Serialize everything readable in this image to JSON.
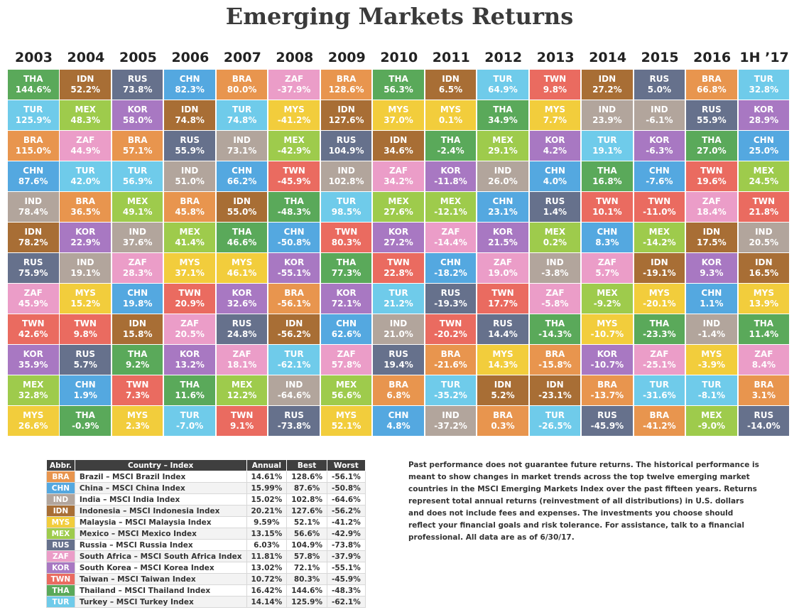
{
  "chart_data": {
    "type": "table",
    "title": "Emerging Markets Returns",
    "years": [
      "2003",
      "2004",
      "2005",
      "2006",
      "2007",
      "2008",
      "2009",
      "2010",
      "2011",
      "2012",
      "2013",
      "2014",
      "2015",
      "2016",
      "1H ’17"
    ],
    "colors": {
      "BRA": "#e8954e",
      "CHN": "#54a8e0",
      "IND": "#b2a59c",
      "IDN": "#a86e35",
      "MYS": "#f2cd3c",
      "MEX": "#9ecb4c",
      "RUS": "#66718c",
      "ZAF": "#eb9dc8",
      "KOR": "#a878c2",
      "TWN": "#ea6b60",
      "THA": "#5aa95a",
      "TUR": "#6fcbea"
    },
    "columns": [
      [
        [
          "THA",
          "144.6%"
        ],
        [
          "TUR",
          "125.9%"
        ],
        [
          "BRA",
          "115.0%"
        ],
        [
          "CHN",
          "87.6%"
        ],
        [
          "IND",
          "78.4%"
        ],
        [
          "IDN",
          "78.2%"
        ],
        [
          "RUS",
          "75.9%"
        ],
        [
          "ZAF",
          "45.9%"
        ],
        [
          "TWN",
          "42.6%"
        ],
        [
          "KOR",
          "35.9%"
        ],
        [
          "MEX",
          "32.8%"
        ],
        [
          "MYS",
          "26.6%"
        ]
      ],
      [
        [
          "IDN",
          "52.2%"
        ],
        [
          "MEX",
          "48.3%"
        ],
        [
          "ZAF",
          "44.9%"
        ],
        [
          "TUR",
          "42.0%"
        ],
        [
          "BRA",
          "36.5%"
        ],
        [
          "KOR",
          "22.9%"
        ],
        [
          "IND",
          "19.1%"
        ],
        [
          "MYS",
          "15.2%"
        ],
        [
          "TWN",
          "9.8%"
        ],
        [
          "RUS",
          "5.7%"
        ],
        [
          "CHN",
          "1.9%"
        ],
        [
          "THA",
          "-0.9%"
        ]
      ],
      [
        [
          "RUS",
          "73.8%"
        ],
        [
          "KOR",
          "58.0%"
        ],
        [
          "BRA",
          "57.1%"
        ],
        [
          "TUR",
          "56.9%"
        ],
        [
          "MEX",
          "49.1%"
        ],
        [
          "IND",
          "37.6%"
        ],
        [
          "ZAF",
          "28.3%"
        ],
        [
          "CHN",
          "19.8%"
        ],
        [
          "IDN",
          "15.8%"
        ],
        [
          "THA",
          "9.2%"
        ],
        [
          "TWN",
          "7.3%"
        ],
        [
          "MYS",
          "2.3%"
        ]
      ],
      [
        [
          "CHN",
          "82.3%"
        ],
        [
          "IDN",
          "74.8%"
        ],
        [
          "RUS",
          "55.9%"
        ],
        [
          "IND",
          "51.0%"
        ],
        [
          "BRA",
          "45.8%"
        ],
        [
          "MEX",
          "41.4%"
        ],
        [
          "MYS",
          "37.1%"
        ],
        [
          "TWN",
          "20.9%"
        ],
        [
          "ZAF",
          "20.5%"
        ],
        [
          "KOR",
          "13.2%"
        ],
        [
          "THA",
          "11.6%"
        ],
        [
          "TUR",
          "-7.0%"
        ]
      ],
      [
        [
          "BRA",
          "80.0%"
        ],
        [
          "TUR",
          "74.8%"
        ],
        [
          "IND",
          "73.1%"
        ],
        [
          "CHN",
          "66.2%"
        ],
        [
          "IDN",
          "55.0%"
        ],
        [
          "THA",
          "46.6%"
        ],
        [
          "MYS",
          "46.1%"
        ],
        [
          "KOR",
          "32.6%"
        ],
        [
          "RUS",
          "24.8%"
        ],
        [
          "ZAF",
          "18.1%"
        ],
        [
          "MEX",
          "12.2%"
        ],
        [
          "TWN",
          "9.1%"
        ]
      ],
      [
        [
          "ZAF",
          "-37.9%"
        ],
        [
          "MYS",
          "-41.2%"
        ],
        [
          "MEX",
          "-42.9%"
        ],
        [
          "TWN",
          "-45.9%"
        ],
        [
          "THA",
          "-48.3%"
        ],
        [
          "CHN",
          "-50.8%"
        ],
        [
          "KOR",
          "-55.1%"
        ],
        [
          "BRA",
          "-56.1%"
        ],
        [
          "IDN",
          "-56.2%"
        ],
        [
          "TUR",
          "-62.1%"
        ],
        [
          "IND",
          "-64.6%"
        ],
        [
          "RUS",
          "-73.8%"
        ]
      ],
      [
        [
          "BRA",
          "128.6%"
        ],
        [
          "IDN",
          "127.6%"
        ],
        [
          "RUS",
          "104.9%"
        ],
        [
          "IND",
          "102.8%"
        ],
        [
          "TUR",
          "98.5%"
        ],
        [
          "TWN",
          "80.3%"
        ],
        [
          "THA",
          "77.3%"
        ],
        [
          "KOR",
          "72.1%"
        ],
        [
          "CHN",
          "62.6%"
        ],
        [
          "ZAF",
          "57.8%"
        ],
        [
          "MEX",
          "56.6%"
        ],
        [
          "MYS",
          "52.1%"
        ]
      ],
      [
        [
          "THA",
          "56.3%"
        ],
        [
          "MYS",
          "37.0%"
        ],
        [
          "IDN",
          "34.6%"
        ],
        [
          "ZAF",
          "34.2%"
        ],
        [
          "MEX",
          "27.6%"
        ],
        [
          "KOR",
          "27.2%"
        ],
        [
          "TWN",
          "22.8%"
        ],
        [
          "TUR",
          "21.2%"
        ],
        [
          "IND",
          "21.0%"
        ],
        [
          "RUS",
          "19.4%"
        ],
        [
          "BRA",
          "6.8%"
        ],
        [
          "CHN",
          "4.8%"
        ]
      ],
      [
        [
          "IDN",
          "6.5%"
        ],
        [
          "MYS",
          "0.1%"
        ],
        [
          "THA",
          "-2.4%"
        ],
        [
          "KOR",
          "-11.8%"
        ],
        [
          "MEX",
          "-12.1%"
        ],
        [
          "ZAF",
          "-14.4%"
        ],
        [
          "CHN",
          "-18.2%"
        ],
        [
          "RUS",
          "-19.3%"
        ],
        [
          "TWN",
          "-20.2%"
        ],
        [
          "BRA",
          "-21.6%"
        ],
        [
          "TUR",
          "-35.2%"
        ],
        [
          "IND",
          "-37.2%"
        ]
      ],
      [
        [
          "TUR",
          "64.9%"
        ],
        [
          "THA",
          "34.9%"
        ],
        [
          "MEX",
          "29.1%"
        ],
        [
          "IND",
          "26.0%"
        ],
        [
          "CHN",
          "23.1%"
        ],
        [
          "KOR",
          "21.5%"
        ],
        [
          "ZAF",
          "19.0%"
        ],
        [
          "TWN",
          "17.7%"
        ],
        [
          "RUS",
          "14.4%"
        ],
        [
          "MYS",
          "14.3%"
        ],
        [
          "IDN",
          "5.2%"
        ],
        [
          "BRA",
          "0.3%"
        ]
      ],
      [
        [
          "TWN",
          "9.8%"
        ],
        [
          "MYS",
          "7.7%"
        ],
        [
          "KOR",
          "4.2%"
        ],
        [
          "CHN",
          "4.0%"
        ],
        [
          "RUS",
          "1.4%"
        ],
        [
          "MEX",
          "0.2%"
        ],
        [
          "IND",
          "-3.8%"
        ],
        [
          "ZAF",
          "-5.8%"
        ],
        [
          "THA",
          "-14.3%"
        ],
        [
          "BRA",
          "-15.8%"
        ],
        [
          "IDN",
          "-23.1%"
        ],
        [
          "TUR",
          "-26.5%"
        ]
      ],
      [
        [
          "IDN",
          "27.2%"
        ],
        [
          "IND",
          "23.9%"
        ],
        [
          "TUR",
          "19.1%"
        ],
        [
          "THA",
          "16.8%"
        ],
        [
          "TWN",
          "10.1%"
        ],
        [
          "CHN",
          "8.3%"
        ],
        [
          "ZAF",
          "5.7%"
        ],
        [
          "MEX",
          "-9.2%"
        ],
        [
          "MYS",
          "-10.7%"
        ],
        [
          "KOR",
          "-10.7%"
        ],
        [
          "BRA",
          "-13.7%"
        ],
        [
          "RUS",
          "-45.9%"
        ]
      ],
      [
        [
          "RUS",
          "5.0%"
        ],
        [
          "IND",
          "-6.1%"
        ],
        [
          "KOR",
          "-6.3%"
        ],
        [
          "CHN",
          "-7.6%"
        ],
        [
          "TWN",
          "-11.0%"
        ],
        [
          "MEX",
          "-14.2%"
        ],
        [
          "IDN",
          "-19.1%"
        ],
        [
          "MYS",
          "-20.1%"
        ],
        [
          "THA",
          "-23.3%"
        ],
        [
          "ZAF",
          "-25.1%"
        ],
        [
          "TUR",
          "-31.6%"
        ],
        [
          "BRA",
          "-41.2%"
        ]
      ],
      [
        [
          "BRA",
          "66.8%"
        ],
        [
          "RUS",
          "55.9%"
        ],
        [
          "THA",
          "27.0%"
        ],
        [
          "TWN",
          "19.6%"
        ],
        [
          "ZAF",
          "18.4%"
        ],
        [
          "IDN",
          "17.5%"
        ],
        [
          "KOR",
          "9.3%"
        ],
        [
          "CHN",
          "1.1%"
        ],
        [
          "IND",
          "-1.4%"
        ],
        [
          "MYS",
          "-3.9%"
        ],
        [
          "TUR",
          "-8.1%"
        ],
        [
          "MEX",
          "-9.0%"
        ]
      ],
      [
        [
          "TUR",
          "32.8%"
        ],
        [
          "KOR",
          "28.9%"
        ],
        [
          "CHN",
          "25.0%"
        ],
        [
          "MEX",
          "24.5%"
        ],
        [
          "TWN",
          "21.8%"
        ],
        [
          "IND",
          "20.5%"
        ],
        [
          "IDN",
          "16.5%"
        ],
        [
          "MYS",
          "13.9%"
        ],
        [
          "THA",
          "11.4%"
        ],
        [
          "ZAF",
          "8.4%"
        ],
        [
          "BRA",
          "3.1%"
        ],
        [
          "RUS",
          "-14.0%"
        ]
      ]
    ]
  },
  "legend": {
    "headers": {
      "abbr": "Abbr.",
      "country": "Country – Index",
      "annual": "Annual",
      "best": "Best",
      "worst": "Worst"
    },
    "rows": [
      {
        "abbr": "BRA",
        "name": "Brazil – MSCI Brazil Index",
        "annual": "14.61%",
        "best": "128.6%",
        "worst": "-56.1%"
      },
      {
        "abbr": "CHN",
        "name": "China – MSCI China Index",
        "annual": "15.99%",
        "best": "87.6%",
        "worst": "-50.8%"
      },
      {
        "abbr": "IND",
        "name": "India – MSCI India Index",
        "annual": "15.02%",
        "best": "102.8%",
        "worst": "-64.6%"
      },
      {
        "abbr": "IDN",
        "name": "Indonesia – MSCI Indonesia Index",
        "annual": "20.21%",
        "best": "127.6%",
        "worst": "-56.2%"
      },
      {
        "abbr": "MYS",
        "name": "Malaysia – MSCI Malaysia Index",
        "annual": "9.59%",
        "best": "52.1%",
        "worst": "-41.2%"
      },
      {
        "abbr": "MEX",
        "name": "Mexico – MSCI Mexico Index",
        "annual": "13.15%",
        "best": "56.6%",
        "worst": "-42.9%"
      },
      {
        "abbr": "RUS",
        "name": "Russia – MSCI Russia Index",
        "annual": "6.03%",
        "best": "104.9%",
        "worst": "-73.8%"
      },
      {
        "abbr": "ZAF",
        "name": "South Africa – MSCI South Africa Index",
        "annual": "11.81%",
        "best": "57.8%",
        "worst": "-37.9%"
      },
      {
        "abbr": "KOR",
        "name": "South Korea – MSCI Korea Index",
        "annual": "13.02%",
        "best": "72.1%",
        "worst": "-55.1%"
      },
      {
        "abbr": "TWN",
        "name": "Taiwan – MSCI Taiwan Index",
        "annual": "10.72%",
        "best": "80.3%",
        "worst": "-45.9%"
      },
      {
        "abbr": "THA",
        "name": "Thailand – MSCI Thailand Index",
        "annual": "16.42%",
        "best": "144.6%",
        "worst": "-48.3%"
      },
      {
        "abbr": "TUR",
        "name": "Turkey – MSCI Turkey Index",
        "annual": "14.14%",
        "best": "125.9%",
        "worst": "-62.1%"
      }
    ]
  },
  "disclaimer": "Past performance does not guarantee future returns. The historical performance is meant to show changes in market trends across the top twelve emerging market countries in the MSCI Emerging Markets Index over the past fifteen years. Returns represent total annual returns (reinvestment of all distributions) in U.S. dollars and does not include fees and expenses. The investments you choose should reflect your financial goals and risk tolerance. For assistance, talk to a financial professional. All data are as of 6/30/17."
}
